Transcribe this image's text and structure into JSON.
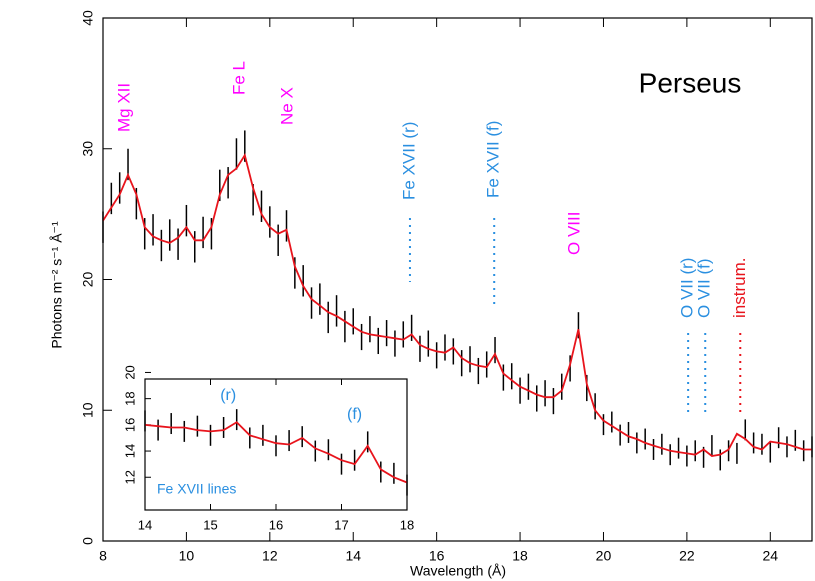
{
  "chart_data": [
    {
      "type": "spectrum",
      "title": "Perseus",
      "x_label": "Wavelength (Å)",
      "y_label": "Photons m⁻² s⁻¹ Å⁻¹",
      "xlim": [
        8,
        25
      ],
      "ylim": [
        0,
        40
      ],
      "xticks": [
        8,
        10,
        12,
        14,
        16,
        18,
        20,
        22,
        24
      ],
      "yticks": [
        0,
        10,
        20,
        30,
        40
      ],
      "x": [
        8.0,
        8.2,
        8.4,
        8.6,
        8.8,
        9.0,
        9.2,
        9.4,
        9.6,
        9.8,
        10.0,
        10.2,
        10.4,
        10.6,
        10.8,
        11.0,
        11.2,
        11.4,
        11.6,
        11.8,
        12.0,
        12.2,
        12.4,
        12.6,
        12.8,
        13.0,
        13.2,
        13.4,
        13.6,
        13.8,
        14.0,
        14.2,
        14.4,
        14.6,
        14.8,
        15.0,
        15.2,
        15.4,
        15.6,
        15.8,
        16.0,
        16.2,
        16.4,
        16.6,
        16.8,
        17.0,
        17.2,
        17.4,
        17.6,
        17.8,
        18.0,
        18.2,
        18.4,
        18.6,
        18.8,
        19.0,
        19.2,
        19.4,
        19.6,
        19.8,
        20.0,
        20.2,
        20.4,
        20.6,
        20.8,
        21.0,
        21.2,
        21.4,
        21.6,
        21.8,
        22.0,
        22.2,
        22.4,
        22.6,
        22.8,
        23.0,
        23.2,
        23.4,
        23.6,
        23.8,
        24.0,
        24.2,
        24.4,
        24.6,
        24.8,
        25.0
      ],
      "series": [
        {
          "color": "#000000",
          "values": [
            24.0,
            26.2,
            27.0,
            28.8,
            25.8,
            23.5,
            23.8,
            22.6,
            23.4,
            22.7,
            24.5,
            22.5,
            23.6,
            23.5,
            27.2,
            27.4,
            29.6,
            30.2,
            26.1,
            25.6,
            24.4,
            23.0,
            24.1,
            20.5,
            19.9,
            18.2,
            18.5,
            17.1,
            17.6,
            16.4,
            16.8,
            15.6,
            16.2,
            15.3,
            15.9,
            15.1,
            15.8,
            16.3,
            14.7,
            15.1,
            14.2,
            14.8,
            14.5,
            13.6,
            13.9,
            13.0,
            13.5,
            14.6,
            12.5,
            12.6,
            11.5,
            11.8,
            10.9,
            11.3,
            10.7,
            11.8,
            13.2,
            16.5,
            11.7,
            10.3,
            8.9,
            9.1,
            8.1,
            8.3,
            7.5,
            7.8,
            7.0,
            7.4,
            6.6,
            7.1,
            6.5,
            6.9,
            6.4,
            7.3,
            6.2,
            6.9,
            6.7,
            8.5,
            7.5,
            7.4,
            6.8,
            7.9,
            7.2,
            7.7,
            6.9,
            7.2
          ],
          "errors": [
            1.2,
            1.2,
            1.2,
            1.2,
            1.2,
            1.2,
            1.2,
            1.2,
            1.2,
            1.2,
            1.2,
            1.2,
            1.2,
            1.2,
            1.2,
            1.2,
            1.2,
            1.2,
            1.2,
            1.2,
            1.2,
            1.2,
            1.2,
            1.2,
            1.2,
            1.2,
            1.2,
            1.2,
            1.2,
            1.2,
            1.0,
            1.0,
            1.0,
            1.0,
            1.0,
            1.0,
            1.0,
            1.0,
            1.0,
            1.0,
            1.0,
            1.0,
            1.0,
            1.0,
            1.0,
            1.0,
            1.0,
            1.0,
            1.0,
            1.0,
            1.0,
            1.0,
            1.0,
            1.0,
            1.0,
            1.0,
            1.0,
            1.0,
            1.0,
            1.0,
            0.8,
            0.8,
            0.8,
            0.8,
            0.8,
            0.8,
            0.8,
            0.8,
            0.8,
            0.8,
            0.8,
            0.8,
            0.8,
            0.8,
            0.8,
            0.8,
            0.8,
            0.8,
            0.8,
            0.8,
            0.8,
            0.8,
            0.8,
            0.8,
            0.8,
            0.8
          ]
        },
        {
          "color": "#e8141c",
          "values": [
            24.5,
            25.5,
            26.5,
            28.0,
            26.5,
            24.0,
            23.3,
            23.0,
            22.8,
            23.2,
            24.0,
            23.0,
            23.0,
            24.0,
            26.5,
            28.0,
            28.5,
            29.5,
            27.0,
            25.0,
            24.0,
            23.5,
            23.8,
            21.0,
            19.5,
            18.5,
            18.0,
            17.5,
            17.2,
            16.8,
            16.4,
            16.0,
            15.8,
            15.7,
            15.6,
            15.5,
            15.4,
            15.8,
            15.0,
            14.7,
            14.5,
            14.4,
            14.8,
            14.0,
            13.6,
            13.4,
            13.3,
            14.3,
            12.8,
            12.3,
            11.8,
            11.5,
            11.2,
            11.0,
            11.0,
            11.5,
            13.5,
            16.2,
            12.0,
            10.0,
            9.2,
            8.8,
            8.4,
            8.0,
            7.8,
            7.5,
            7.3,
            7.1,
            6.9,
            6.8,
            6.7,
            6.6,
            7.0,
            6.5,
            6.6,
            7.0,
            8.2,
            7.8,
            7.2,
            7.0,
            7.6,
            7.5,
            7.4,
            7.2,
            7.0,
            7.0
          ]
        }
      ],
      "annotations": [
        {
          "text": "Mg XII",
          "color": "#ff00ff",
          "x": 8.53
        },
        {
          "text": "Fe L",
          "color": "#ff00ff",
          "x": 11.29
        },
        {
          "text": "Ne X",
          "color": "#ff00ff",
          "x": 12.44
        },
        {
          "text": "Fe XVII (r)",
          "color": "#2a8fe0",
          "x": 15.36
        },
        {
          "text": "Fe XVII (f)",
          "color": "#2a8fe0",
          "x": 17.38
        },
        {
          "text": "O VIII",
          "color": "#ff00ff",
          "x": 19.32
        },
        {
          "text": "O VII (r)",
          "color": "#2a8fe0",
          "x": 22.03
        },
        {
          "text": "O VII (f)",
          "color": "#2a8fe0",
          "x": 22.44
        },
        {
          "text": "instrum.",
          "color": "#e8141c",
          "x": 23.28
        }
      ]
    },
    {
      "type": "spectrum",
      "note": "Fe XVII lines",
      "xlim": [
        14,
        18
      ],
      "ylim": [
        9.5,
        19.5
      ],
      "xticks": [
        14,
        15,
        16,
        17,
        18
      ],
      "yticks": [
        12,
        14,
        16,
        18,
        20
      ],
      "x": [
        14.0,
        14.2,
        14.4,
        14.6,
        14.8,
        15.0,
        15.2,
        15.4,
        15.6,
        15.8,
        16.0,
        16.2,
        16.4,
        16.6,
        16.8,
        17.0,
        17.2,
        17.4,
        17.6,
        17.8,
        18.0
      ],
      "series": [
        {
          "color": "#000000",
          "values": [
            16.3,
            15.6,
            16.1,
            15.5,
            15.9,
            15.2,
            15.8,
            16.4,
            15.0,
            15.2,
            14.4,
            14.8,
            15.1,
            14.0,
            14.1,
            13.0,
            13.3,
            14.7,
            12.4,
            12.3,
            11.4
          ],
          "errors": [
            0.8,
            0.8,
            0.8,
            0.8,
            0.8,
            0.8,
            0.8,
            0.8,
            0.8,
            0.8,
            0.8,
            0.8,
            0.8,
            0.8,
            0.8,
            0.8,
            0.8,
            0.8,
            0.8,
            0.8,
            0.8
          ]
        },
        {
          "color": "#e8141c",
          "values": [
            16.0,
            15.9,
            15.8,
            15.8,
            15.6,
            15.5,
            15.6,
            16.2,
            15.2,
            14.9,
            14.6,
            14.5,
            15.0,
            14.2,
            13.8,
            13.3,
            13.0,
            14.4,
            12.6,
            12.0,
            11.6
          ]
        }
      ],
      "annotations": [
        {
          "text": "(r)",
          "color": "#2a8fe0",
          "x": 15.27
        },
        {
          "text": "(f)",
          "color": "#2a8fe0",
          "x": 17.2
        }
      ]
    }
  ]
}
